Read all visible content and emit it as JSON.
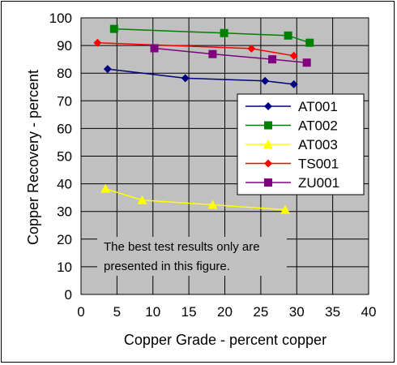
{
  "chart_data": {
    "type": "line",
    "title": "",
    "xlabel": "Copper Grade - percent copper",
    "ylabel": "Copper Recovery - percent",
    "xlim": [
      0,
      40
    ],
    "ylim": [
      0,
      100
    ],
    "xticks": [
      0,
      5,
      10,
      15,
      20,
      25,
      30,
      35,
      40
    ],
    "yticks": [
      0,
      10,
      20,
      30,
      40,
      50,
      60,
      70,
      80,
      90,
      100
    ],
    "grid": true,
    "legend_position": "right",
    "plot_background": "#c0c0c0",
    "series": [
      {
        "name": "AT001",
        "color": "#000080",
        "marker": "diamond",
        "points": [
          [
            3.7,
            81.5
          ],
          [
            14.5,
            78.2
          ],
          [
            25.6,
            77.2
          ],
          [
            29.6,
            76.0
          ]
        ]
      },
      {
        "name": "AT002",
        "color": "#008000",
        "marker": "square",
        "points": [
          [
            4.6,
            96.0
          ],
          [
            19.9,
            94.5
          ],
          [
            28.8,
            93.6
          ],
          [
            31.8,
            91.0
          ]
        ]
      },
      {
        "name": "AT003",
        "color": "#ffff00",
        "marker": "triangle",
        "points": [
          [
            3.4,
            38.2
          ],
          [
            8.5,
            34.1
          ],
          [
            18.3,
            32.4
          ],
          [
            28.4,
            30.6
          ]
        ]
      },
      {
        "name": "TS001",
        "color": "#ff0000",
        "marker": "diamond",
        "points": [
          [
            2.3,
            91.0
          ],
          [
            23.7,
            88.9
          ],
          [
            29.6,
            86.3
          ]
        ]
      },
      {
        "name": "ZU001",
        "color": "#800080",
        "marker": "square",
        "points": [
          [
            10.2,
            89.0
          ],
          [
            18.3,
            86.9
          ],
          [
            26.6,
            85.0
          ],
          [
            31.4,
            83.8
          ]
        ]
      }
    ],
    "annotation": {
      "line1": "The best test results only are",
      "line2": "presented in this figure."
    }
  }
}
